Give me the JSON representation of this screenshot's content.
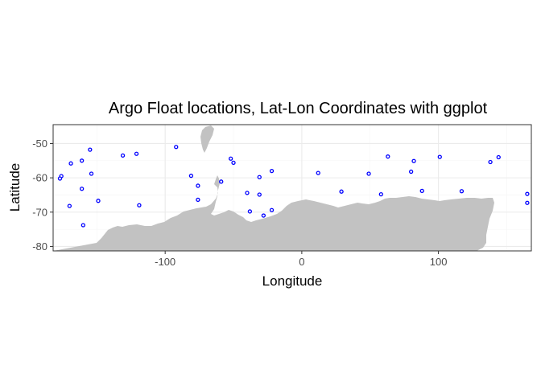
{
  "chart_data": {
    "type": "scatter",
    "title": "Argo Float locations, Lat-Lon Coordinates with ggplot",
    "xlabel": "Longitude",
    "ylabel": "Latitude",
    "xlim": [
      -182,
      168
    ],
    "ylim": [
      -81.3,
      -44.5
    ],
    "x_ticks": [
      -100,
      0,
      100
    ],
    "x_tick_labels": [
      "-100",
      "0",
      "100"
    ],
    "y_ticks": [
      -50,
      -60,
      -70,
      -80
    ],
    "y_tick_labels": [
      "-50",
      "-60",
      "-70",
      "-80"
    ],
    "grid": true,
    "theme": "bw",
    "legend": "none",
    "colors": {
      "points": "#0000ff",
      "land": "#c2c2c2",
      "grid_major": "#ebebeb",
      "grid_minor": "#f5f5f5",
      "panel_border": "#333333"
    },
    "background_map": "antarctica-and-south-america-landmass",
    "points": [
      {
        "lon": -176,
        "lat": -59.5
      },
      {
        "lon": -177,
        "lat": -60.2
      },
      {
        "lon": -169,
        "lat": -55.8
      },
      {
        "lon": -170,
        "lat": -68.2
      },
      {
        "lon": -161,
        "lat": -55.0
      },
      {
        "lon": -161,
        "lat": -63.2
      },
      {
        "lon": -160,
        "lat": -73.8
      },
      {
        "lon": -155,
        "lat": -51.8
      },
      {
        "lon": -154,
        "lat": -58.8
      },
      {
        "lon": -149,
        "lat": -66.7
      },
      {
        "lon": -131,
        "lat": -53.5
      },
      {
        "lon": -121,
        "lat": -53.0
      },
      {
        "lon": -119,
        "lat": -68.0
      },
      {
        "lon": -92,
        "lat": -51.0
      },
      {
        "lon": -81,
        "lat": -59.4
      },
      {
        "lon": -76,
        "lat": -62.3
      },
      {
        "lon": -76,
        "lat": -66.4
      },
      {
        "lon": -59,
        "lat": -61.1
      },
      {
        "lon": -52,
        "lat": -54.4
      },
      {
        "lon": -50,
        "lat": -55.6
      },
      {
        "lon": -40,
        "lat": -64.4
      },
      {
        "lon": -38,
        "lat": -69.8
      },
      {
        "lon": -31,
        "lat": -59.8
      },
      {
        "lon": -31,
        "lat": -64.9
      },
      {
        "lon": -28,
        "lat": -71.0
      },
      {
        "lon": -22,
        "lat": -58.0
      },
      {
        "lon": -22,
        "lat": -69.4
      },
      {
        "lon": 12,
        "lat": -58.6
      },
      {
        "lon": 29,
        "lat": -64.0
      },
      {
        "lon": 49,
        "lat": -58.8
      },
      {
        "lon": 58,
        "lat": -64.8
      },
      {
        "lon": 63,
        "lat": -53.8
      },
      {
        "lon": 80,
        "lat": -58.2
      },
      {
        "lon": 82,
        "lat": -55.1
      },
      {
        "lon": 88,
        "lat": -63.8
      },
      {
        "lon": 101,
        "lat": -53.9
      },
      {
        "lon": 117,
        "lat": -63.9
      },
      {
        "lon": 138,
        "lat": -55.4
      },
      {
        "lon": 144,
        "lat": -54.0
      },
      {
        "lon": 165,
        "lat": -64.7
      },
      {
        "lon": 165,
        "lat": -67.3
      }
    ]
  }
}
